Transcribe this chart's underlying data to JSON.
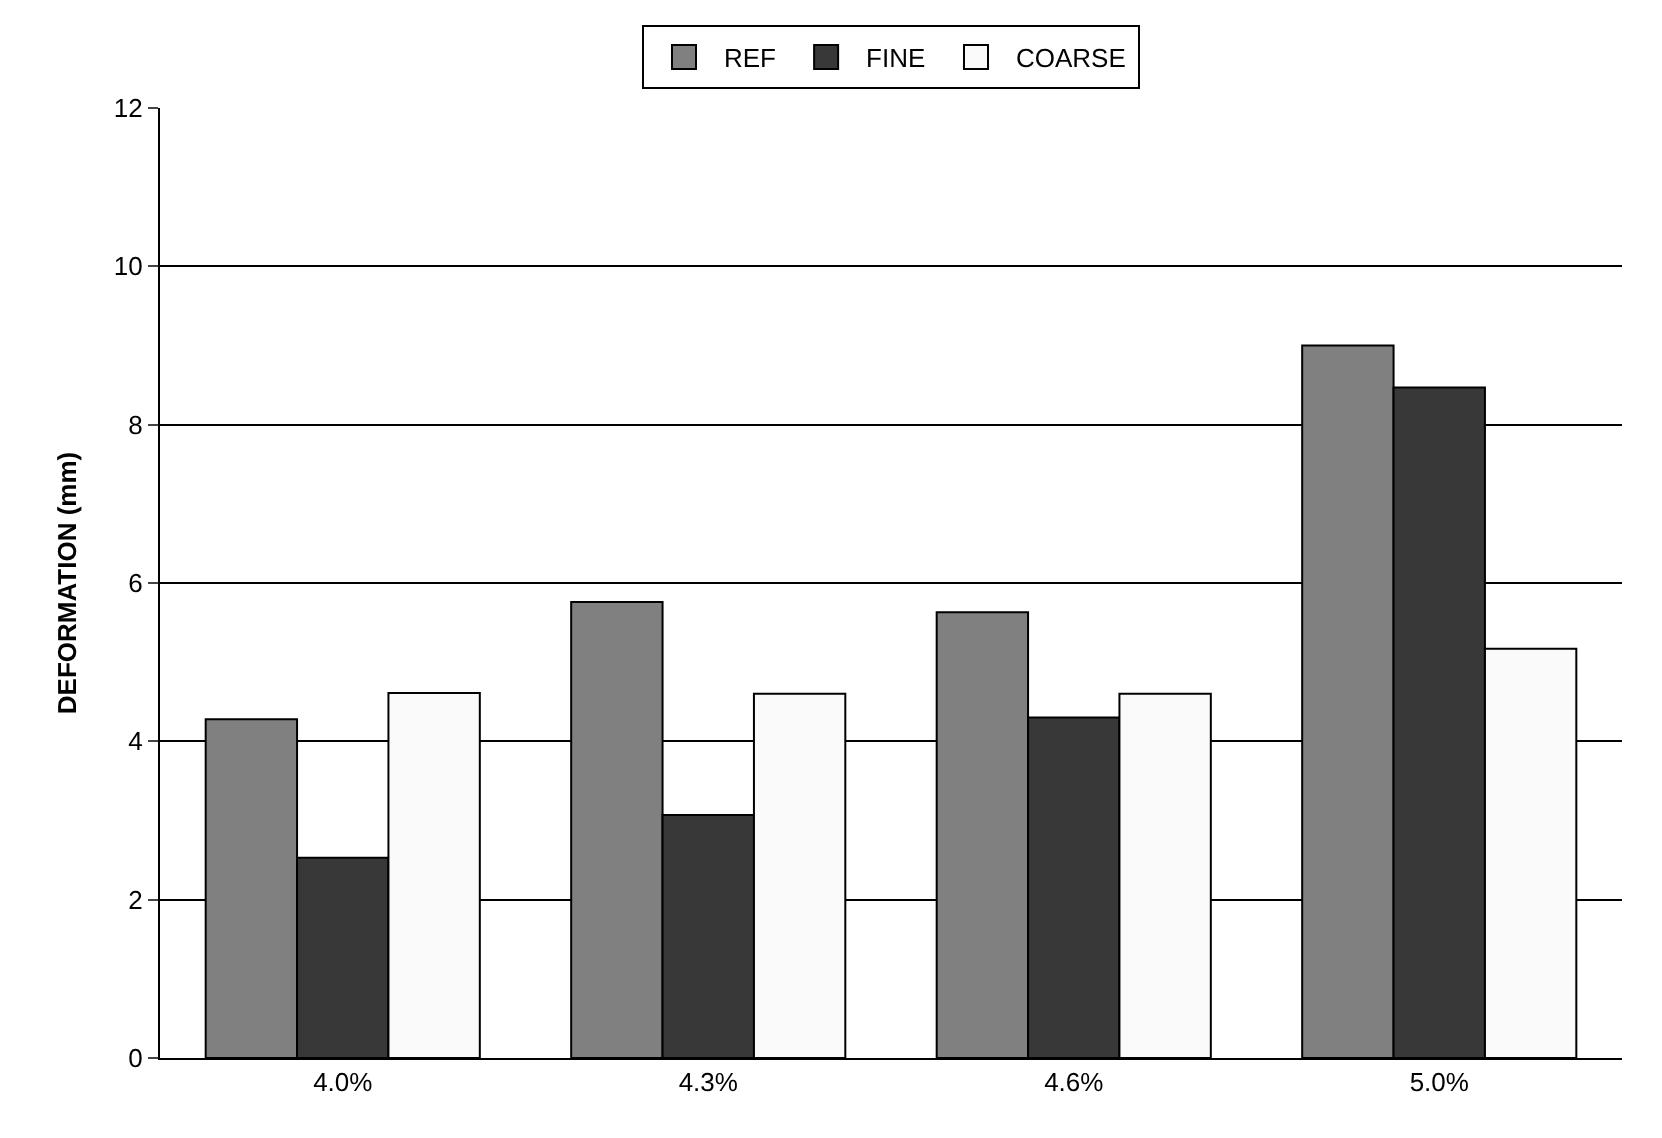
{
  "chart_data": {
    "type": "bar",
    "ylabel": "DEFORMATION (mm)",
    "categories": [
      "4.0%",
      "4.3%",
      "4.6%",
      "5.0%"
    ],
    "series": [
      {
        "name": "REF",
        "color": "#808080",
        "values": [
          4.28,
          5.76,
          5.63,
          9.0
        ]
      },
      {
        "name": "FINE",
        "color": "#383838",
        "values": [
          2.53,
          3.07,
          4.3,
          8.47
        ]
      },
      {
        "name": "COARSE",
        "color": "#fafafa",
        "values": [
          4.61,
          4.6,
          4.6,
          5.17
        ]
      }
    ],
    "ylim": [
      0,
      12
    ],
    "yticks": [
      0,
      2,
      4,
      6,
      8,
      10,
      12
    ],
    "grid": "y",
    "legend": "top"
  }
}
